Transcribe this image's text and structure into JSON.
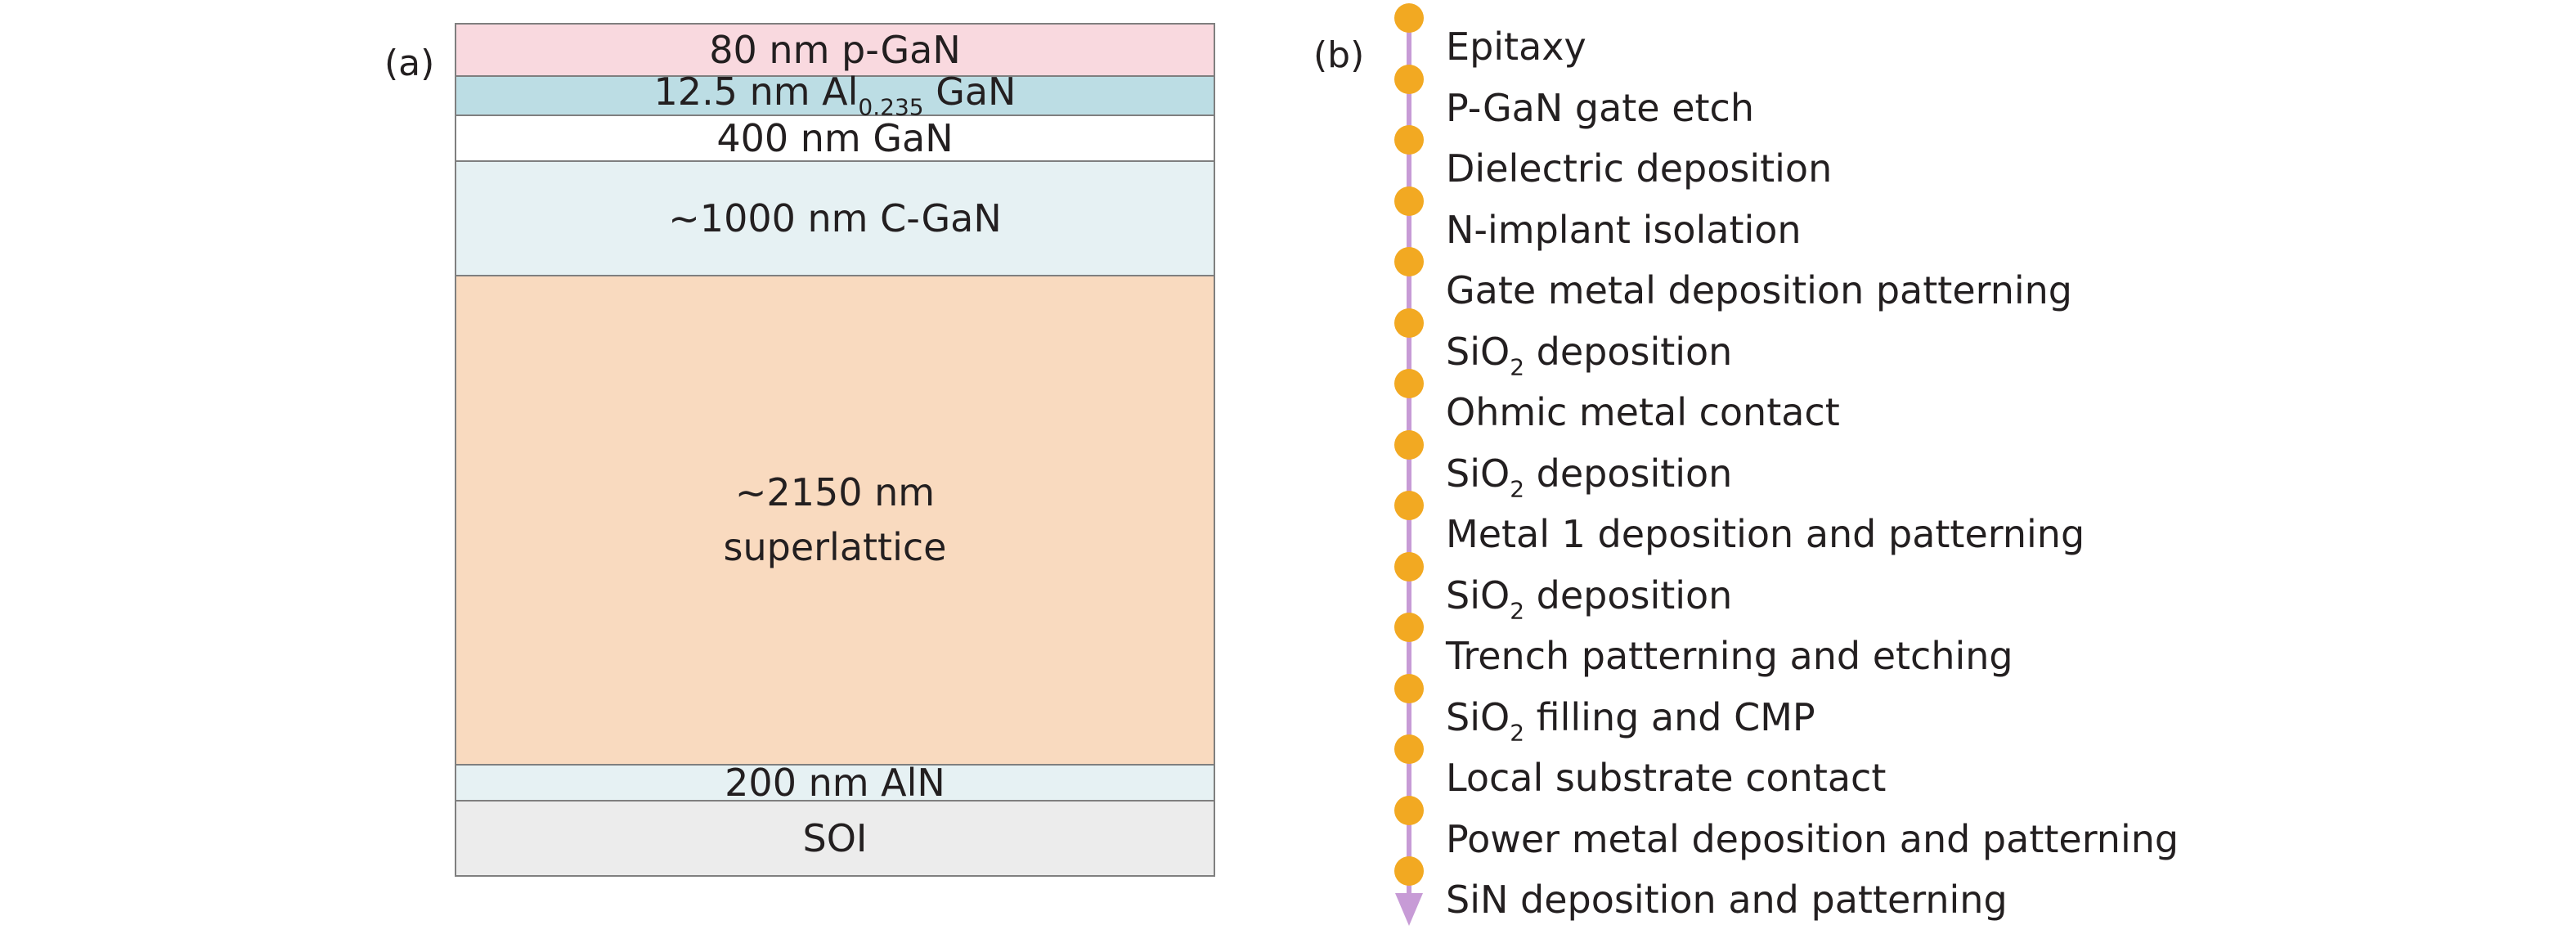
{
  "panel_a": {
    "label": "(a)",
    "layers": [
      {
        "text": "80 nm p-GaN",
        "color": "#f9d9df"
      },
      {
        "text_pre": "12.5 nm Al",
        "sub": "0.235",
        "text_post": " GaN",
        "color": "#bcdde4"
      },
      {
        "text": "400 nm GaN",
        "color": "#ffffff"
      },
      {
        "text": "~1000 nm C-GaN",
        "color": "#e6f1f3"
      },
      {
        "text": "~2150 nm\nsuperlattice",
        "color": "#f9dabf"
      },
      {
        "text": "200 nm AlN",
        "color": "#e6f1f3"
      },
      {
        "text": "SOI",
        "color": "#ececec"
      }
    ]
  },
  "panel_b": {
    "label": "(b)",
    "colors": {
      "line": "#c79bd6",
      "dot": "#f2a922"
    },
    "steps": [
      {
        "text": "Epitaxy"
      },
      {
        "text": "P-GaN gate etch"
      },
      {
        "text": "Dielectric deposition"
      },
      {
        "text": "N-implant isolation"
      },
      {
        "text": "Gate metal deposition patterning"
      },
      {
        "pre": "SiO",
        "sub": "2",
        "post": " deposition"
      },
      {
        "text": "Ohmic metal contact"
      },
      {
        "pre": "SiO",
        "sub": "2",
        "post": " deposition"
      },
      {
        "text": "Metal 1 deposition and patterning"
      },
      {
        "pre": "SiO",
        "sub": "2",
        "post": " deposition"
      },
      {
        "text": "Trench patterning and etching"
      },
      {
        "pre": "SiO",
        "sub": "2",
        "post": " filling and CMP"
      },
      {
        "text": "Local substrate contact"
      },
      {
        "text": "Power metal deposition and patterning"
      },
      {
        "text": "SiN deposition and patterning"
      }
    ]
  }
}
